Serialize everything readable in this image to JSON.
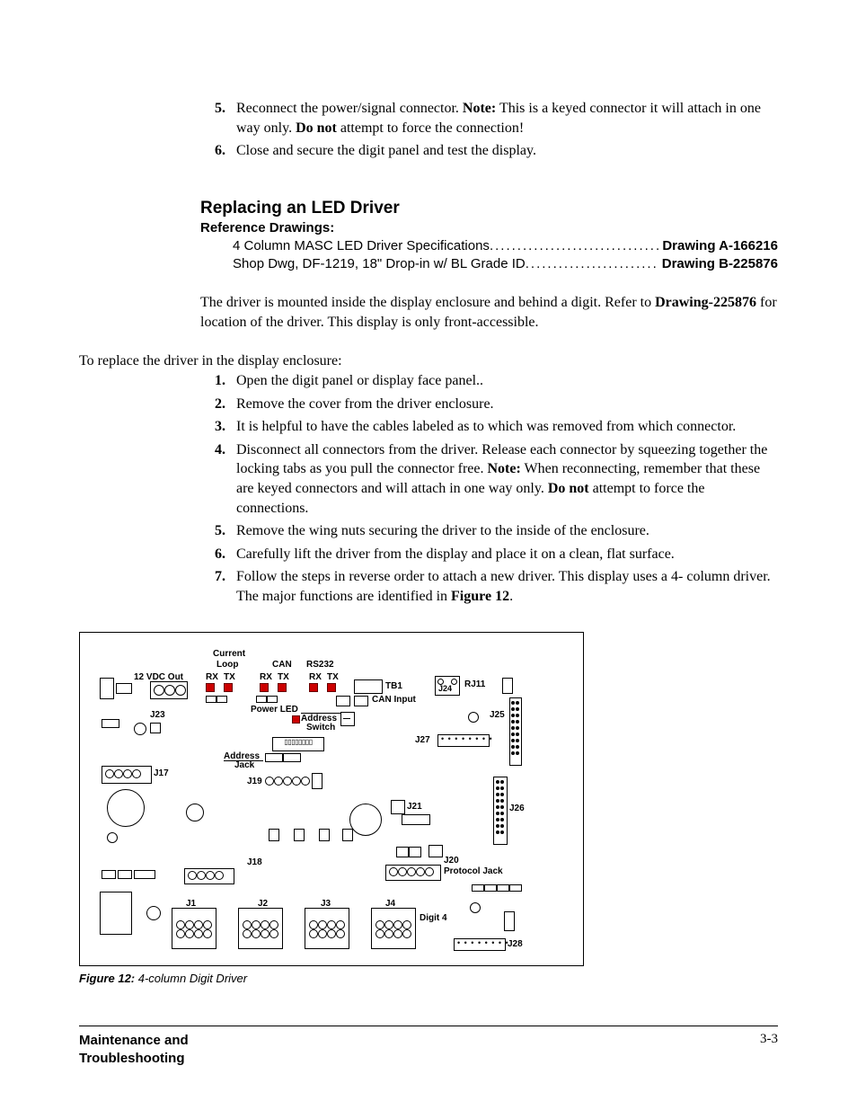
{
  "list1": [
    {
      "n": "5.",
      "html": "Reconnect the power/signal connector. <span class=\"b\">Note:</span> This is a keyed connector it will attach in one way only. <span class=\"b\">Do not</span> attempt to force the connection!"
    },
    {
      "n": "6.",
      "html": "Close and secure the digit panel and test the display."
    }
  ],
  "h2": "Replacing an LED Driver",
  "h3": "Reference Drawings:",
  "refs": [
    {
      "left": "4 Column MASC LED Driver Specifications",
      "right": "Drawing A-166216"
    },
    {
      "left": "Shop Dwg, DF-1219, 18\" Drop-in w/ BL Grade ID",
      "right": "Drawing B-225876"
    }
  ],
  "para1": "The driver is mounted inside the display enclosure and behind a digit. Refer to <span class=\"b\">Drawing-225876</span> for location of the driver. This display is only front-accessible.",
  "para2": "To replace the driver in the display enclosure:",
  "list2": [
    {
      "n": "1.",
      "html": "Open the digit panel or display face panel.."
    },
    {
      "n": "2.",
      "html": "Remove the cover from the driver enclosure."
    },
    {
      "n": "3.",
      "html": "It is helpful to have the cables labeled as to which was removed from which connector."
    },
    {
      "n": "4.",
      "html": "Disconnect all connectors from the driver. Release each connector by squeezing together the locking tabs as you pull the connector free. <span class=\"b\">Note:</span> When reconnecting, remember that these are keyed connectors and will attach in one way only. <span class=\"b\">Do not</span> attempt to force the connections."
    },
    {
      "n": "5.",
      "html": "Remove the wing nuts securing the driver to the inside of the enclosure."
    },
    {
      "n": "6.",
      "html": "Carefully lift the driver from the display and place it on a clean, flat surface."
    },
    {
      "n": "7.",
      "html": "Follow the steps in reverse order to attach a new driver. This display uses a 4- column driver. The major functions are identified in <span class=\"b\">Figure 12</span>."
    }
  ],
  "figure": {
    "caption_head": "Figure 12:",
    "caption_body": " 4-column Digit Driver",
    "labels": {
      "current": "Current",
      "loop": "Loop",
      "can": "CAN",
      "rs232": "RS232",
      "vdc": "12 VDC Out",
      "rx": "RX",
      "tx": "TX",
      "tb1": "TB1",
      "rj11": "RJ11",
      "can_input": "CAN Input",
      "j24": "J24",
      "j23": "J23",
      "j25": "J25",
      "j27": "J27",
      "power_led": "Power LED",
      "address_switch1": "Address",
      "address_switch2": "Switch",
      "address_jack1": "Address",
      "address_jack2": "Jack",
      "j17": "J17",
      "j19": "J19",
      "j26": "J26",
      "j21": "J21",
      "j18": "J18",
      "j20": "J20",
      "protocol_jack": "Protocol Jack",
      "j1": "J1",
      "j2": "J2",
      "j3": "J3",
      "j4": "J4",
      "digit4": "Digit 4",
      "j28": "J28"
    }
  },
  "footer": {
    "left": "Maintenance and Troubleshooting",
    "right": "3-3"
  }
}
